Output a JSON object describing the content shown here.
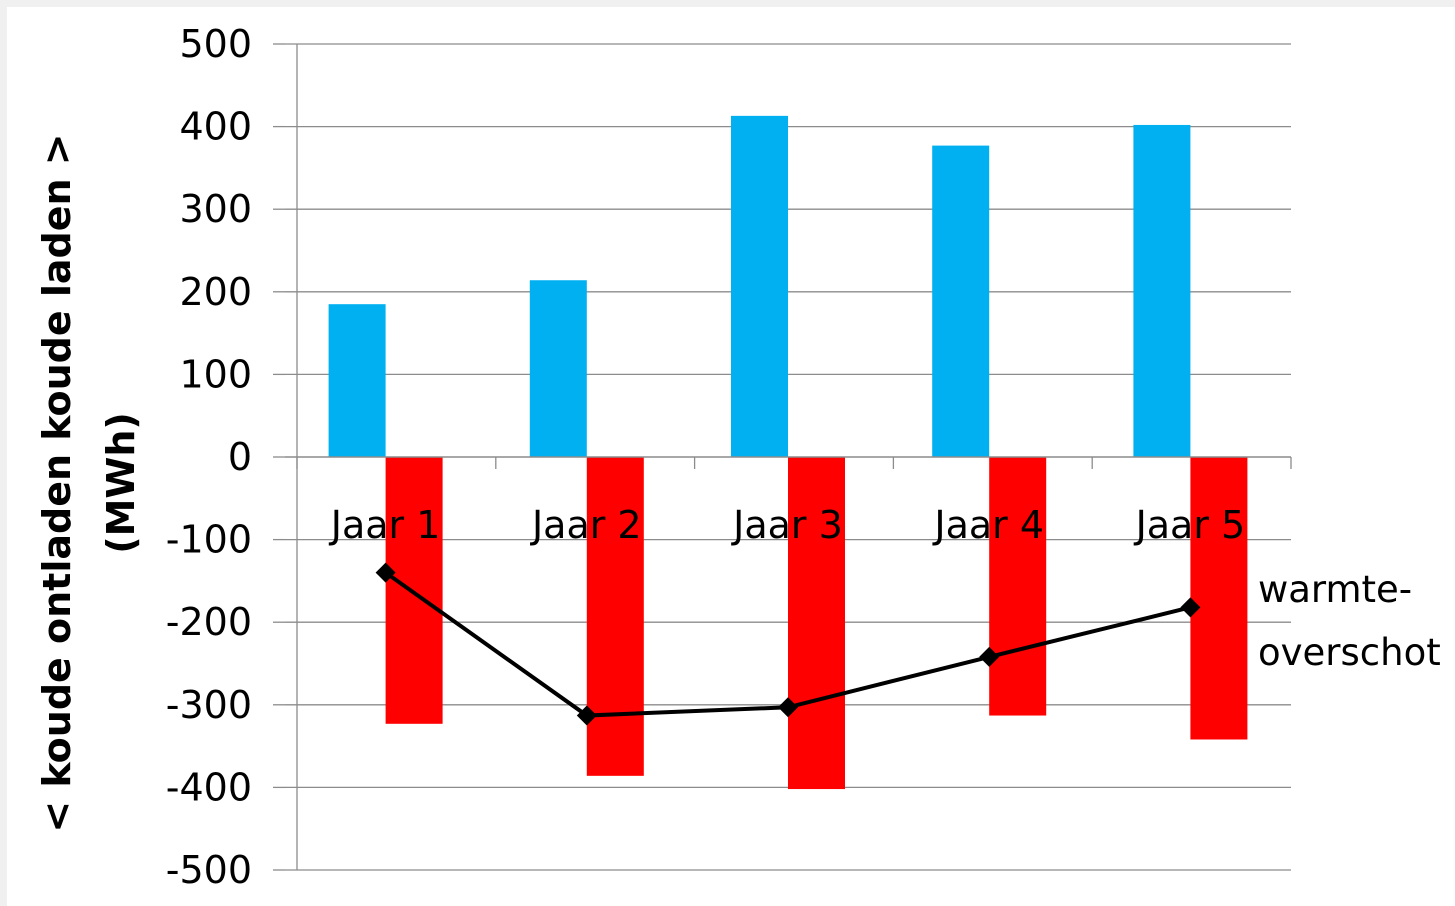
{
  "chart_data": {
    "type": "bar",
    "categories": [
      "Jaar 1",
      "Jaar 2",
      "Jaar 3",
      "Jaar 4",
      "Jaar 5"
    ],
    "series": [
      {
        "type": "bar",
        "color": "#00b0f0",
        "values": [
          185,
          214,
          413,
          377,
          402
        ]
      },
      {
        "type": "bar",
        "color": "#ff0000",
        "values": [
          -323,
          -386,
          -402,
          -313,
          -342
        ]
      },
      {
        "type": "line",
        "color": "#000000",
        "marker": "diamond",
        "values": [
          -140,
          -313,
          -303,
          -242,
          -182
        ]
      }
    ],
    "ylabel_line1": "< koude ontladen   koude laden >",
    "ylabel_line2": "(MWh)",
    "ylim": [
      -500,
      500
    ],
    "yticks": [
      500,
      400,
      300,
      200,
      100,
      0,
      -100,
      -200,
      -300,
      -400,
      -500
    ],
    "grid": true,
    "annotation_line1": "warmte-",
    "annotation_line2": "overschot"
  }
}
